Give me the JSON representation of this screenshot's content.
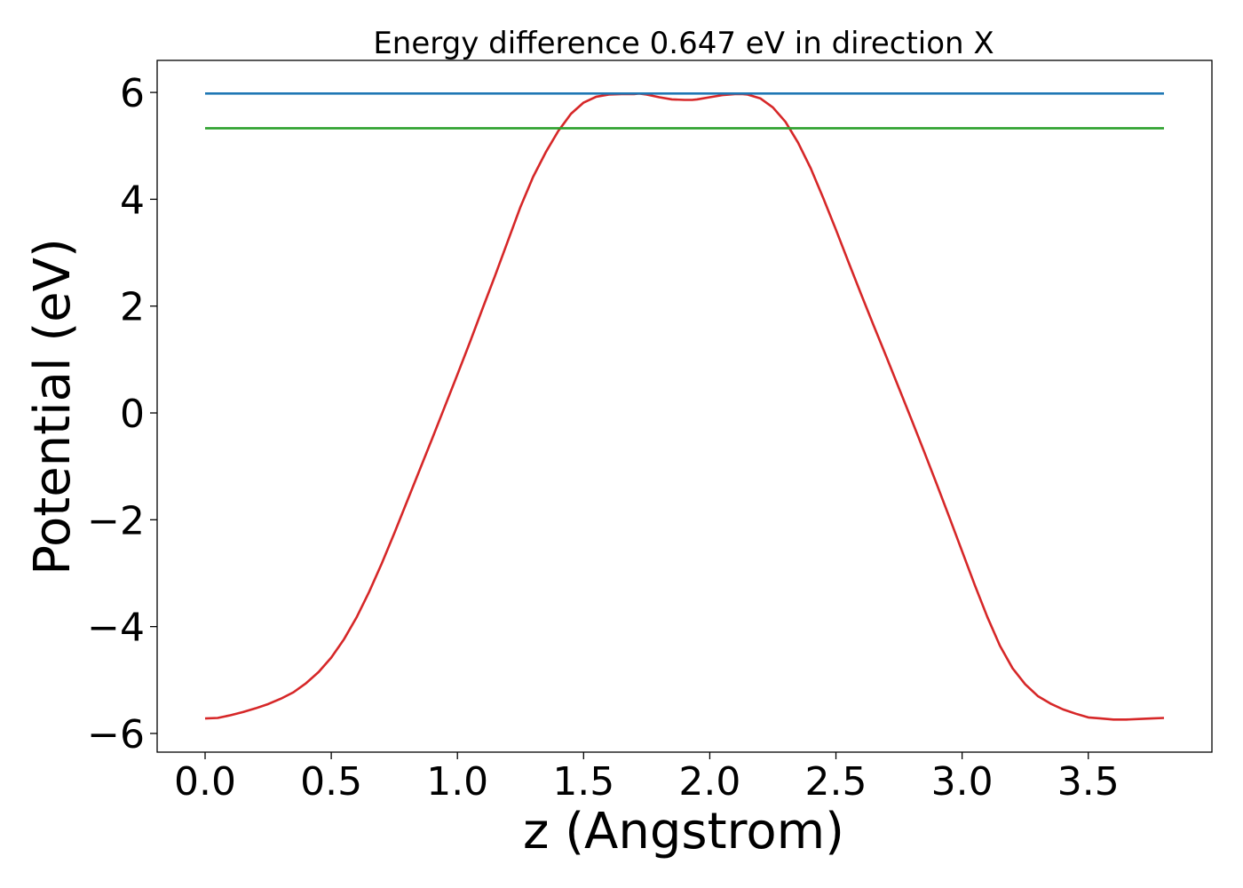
{
  "chart_data": {
    "type": "line",
    "title": "Energy difference 0.647 eV in direction X",
    "xlabel": "z (Angstrom)",
    "ylabel": "Potential (eV)",
    "xlim": [
      -0.19,
      3.99
    ],
    "ylim": [
      -6.35,
      6.6
    ],
    "xticks": [
      0.0,
      0.5,
      1.0,
      1.5,
      2.0,
      2.5,
      3.0,
      3.5
    ],
    "xtick_labels": [
      "0.0",
      "0.5",
      "1.0",
      "1.5",
      "2.0",
      "2.5",
      "3.0",
      "3.5"
    ],
    "yticks": [
      -6,
      -4,
      -2,
      0,
      2,
      4,
      6
    ],
    "ytick_labels": [
      "−6",
      "−4",
      "−2",
      "0",
      "2",
      "4",
      "6"
    ],
    "grid": false,
    "legend": "none",
    "series": [
      {
        "color": "#d62728",
        "x": [
          0.0,
          0.05,
          0.1,
          0.15,
          0.2,
          0.25,
          0.3,
          0.35,
          0.4,
          0.45,
          0.5,
          0.55,
          0.6,
          0.65,
          0.7,
          0.75,
          0.8,
          0.85,
          0.9,
          0.95,
          1.0,
          1.05,
          1.1,
          1.15,
          1.2,
          1.25,
          1.3,
          1.35,
          1.4,
          1.45,
          1.5,
          1.55,
          1.6,
          1.65,
          1.7,
          1.72,
          1.75,
          1.8,
          1.85,
          1.9,
          1.93,
          1.95,
          2.0,
          2.05,
          2.1,
          2.13,
          2.15,
          2.2,
          2.25,
          2.3,
          2.35,
          2.4,
          2.45,
          2.5,
          2.55,
          2.6,
          2.65,
          2.7,
          2.75,
          2.8,
          2.85,
          2.9,
          2.95,
          3.0,
          3.05,
          3.1,
          3.15,
          3.2,
          3.25,
          3.3,
          3.35,
          3.4,
          3.45,
          3.5,
          3.55,
          3.6,
          3.65,
          3.7,
          3.75,
          3.8
        ],
        "y": [
          -5.72,
          -5.71,
          -5.66,
          -5.6,
          -5.53,
          -5.45,
          -5.35,
          -5.23,
          -5.06,
          -4.85,
          -4.58,
          -4.24,
          -3.83,
          -3.35,
          -2.82,
          -2.25,
          -1.66,
          -1.07,
          -0.48,
          0.12,
          0.72,
          1.33,
          1.96,
          2.58,
          3.22,
          3.86,
          4.42,
          4.88,
          5.28,
          5.6,
          5.81,
          5.92,
          5.96,
          5.97,
          5.97,
          5.98,
          5.96,
          5.91,
          5.87,
          5.86,
          5.86,
          5.87,
          5.91,
          5.95,
          5.97,
          5.97,
          5.96,
          5.89,
          5.72,
          5.45,
          5.06,
          4.58,
          4.02,
          3.43,
          2.82,
          2.22,
          1.63,
          1.05,
          0.46,
          -0.13,
          -0.73,
          -1.34,
          -1.96,
          -2.59,
          -3.22,
          -3.82,
          -4.36,
          -4.78,
          -5.08,
          -5.3,
          -5.44,
          -5.55,
          -5.63,
          -5.7,
          -5.72,
          -5.74,
          -5.74,
          -5.73,
          -5.72,
          -5.71
        ]
      },
      {
        "color": "#1f77b4",
        "x": [
          0.0,
          3.8
        ],
        "y": [
          5.98,
          5.98
        ]
      },
      {
        "color": "#2ca02c",
        "x": [
          0.0,
          3.8
        ],
        "y": [
          5.33,
          5.33
        ]
      }
    ]
  }
}
